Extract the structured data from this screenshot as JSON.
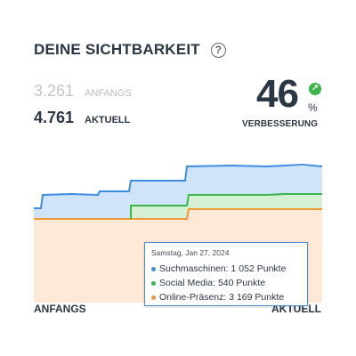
{
  "header": {
    "title": "DEINE SICHTBARKEIT",
    "help_glyph": "?"
  },
  "stats": {
    "start": {
      "value": "3.261",
      "label": "ANFANGS"
    },
    "current": {
      "value": "4.761",
      "label": "AKTUELL"
    }
  },
  "improvement": {
    "value": "46",
    "unit": "%",
    "label": "VERBESSERUNG",
    "icon": "arrow-up-right-icon",
    "color": "#3ab54a"
  },
  "axis": {
    "start": "ANFANGS",
    "end": "AKTUELL"
  },
  "tooltip": {
    "date": "Samstag, Jan 27, 2024",
    "rows": [
      {
        "text": "Suchmaschinen: 1 052 Punkte",
        "color": "#3d8de0"
      },
      {
        "text": "Social Media: 540 Punkte",
        "color": "#3ab54a"
      },
      {
        "text": "Online-Präsenz: 3 169 Punkte",
        "color": "#f19a38"
      }
    ]
  },
  "colors": {
    "blue": "#3d8de0",
    "green": "#3ab54a",
    "orange": "#f19a38"
  }
}
